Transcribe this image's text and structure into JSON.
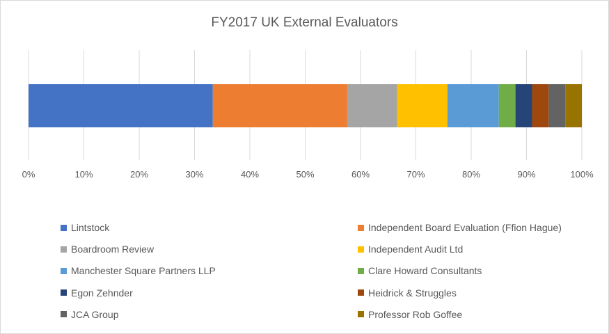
{
  "chart_data": {
    "type": "bar",
    "orientation": "horizontal",
    "stacked": "percent",
    "title": "FY2017 UK External Evaluators",
    "xlabel": "",
    "ylabel": "",
    "xlim": [
      0,
      100
    ],
    "x_ticks": [
      "0%",
      "10%",
      "20%",
      "30%",
      "40%",
      "50%",
      "60%",
      "70%",
      "80%",
      "90%",
      "100%"
    ],
    "grid": true,
    "legend_position": "bottom",
    "series": [
      {
        "name": "Lintstock",
        "value": 33.3,
        "color": "#4472c4"
      },
      {
        "name": "Independent Board Evaluation (Ffion Hague)",
        "value": 24.3,
        "color": "#ed7d31"
      },
      {
        "name": "Boardroom Review",
        "value": 9.0,
        "color": "#a5a5a5"
      },
      {
        "name": "Independent Audit Ltd",
        "value": 9.1,
        "color": "#ffc000"
      },
      {
        "name": "Manchester Square Partners LLP",
        "value": 9.3,
        "color": "#5b9bd5"
      },
      {
        "name": "Clare Howard Consultants",
        "value": 3.0,
        "color": "#70ad47"
      },
      {
        "name": "Egon Zehnder",
        "value": 3.0,
        "color": "#264478"
      },
      {
        "name": "Heidrick & Struggles",
        "value": 3.0,
        "color": "#9e480e"
      },
      {
        "name": "JCA Group",
        "value": 3.0,
        "color": "#636363"
      },
      {
        "name": "Professor Rob Goffee",
        "value": 3.0,
        "color": "#997300"
      }
    ]
  }
}
